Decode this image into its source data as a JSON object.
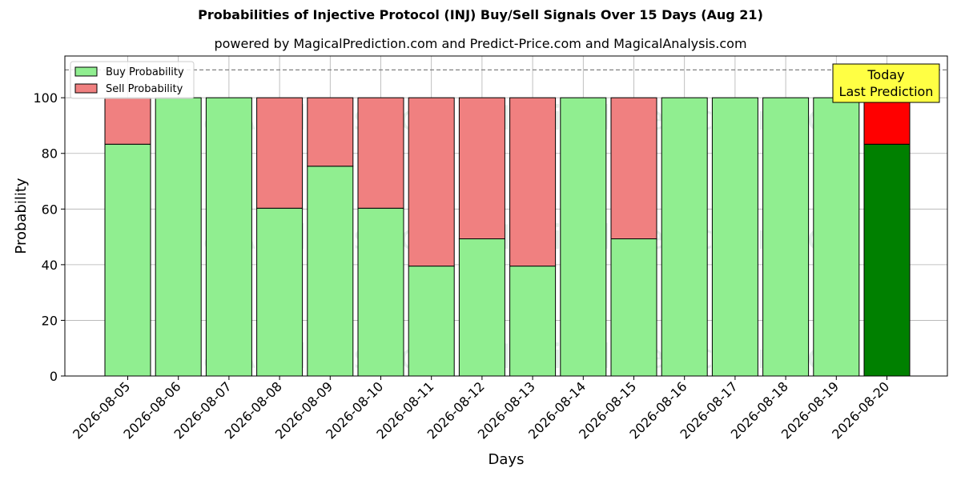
{
  "chart_data": {
    "type": "bar",
    "stacked": true,
    "title": "Probabilities of Injective Protocol (INJ) Buy/Sell Signals Over 15 Days (Aug 21)",
    "subtitle": "powered by MagicalPrediction.com and Predict-Price.com and MagicalAnalysis.com",
    "xlabel": "Days",
    "ylabel": "Probability",
    "ylim": [
      0,
      115
    ],
    "yticks": [
      0,
      20,
      40,
      60,
      80,
      100
    ],
    "grid": true,
    "legend_position": "top-left",
    "reference_line": 110,
    "categories": [
      "2026-08-05",
      "2026-08-06",
      "2026-08-07",
      "2026-08-08",
      "2026-08-09",
      "2026-08-10",
      "2026-08-11",
      "2026-08-12",
      "2026-08-13",
      "2026-08-14",
      "2026-08-15",
      "2026-08-16",
      "2026-08-17",
      "2026-08-18",
      "2026-08-19",
      "2026-08-20"
    ],
    "series": [
      {
        "name": "Buy Probability",
        "values": [
          83.3,
          100,
          100,
          60.3,
          75.4,
          60.3,
          39.5,
          49.3,
          39.5,
          100,
          49.3,
          100,
          100,
          100,
          100,
          83.3
        ]
      },
      {
        "name": "Sell Probability",
        "values": [
          16.7,
          0,
          0,
          39.7,
          24.6,
          39.7,
          60.5,
          50.7,
          60.5,
          0,
          50.7,
          0,
          0,
          0,
          0,
          16.7
        ]
      }
    ],
    "annotation": {
      "line1": "Today",
      "line2": "Last Prediction"
    },
    "watermarks": [
      "MagicalAnalysis.com",
      "MagicalPrediction.com"
    ],
    "colors": {
      "buy": "#90ee90",
      "sell": "#f08080",
      "buy_last": "#008000",
      "sell_last": "#ff0000",
      "annotation_bg": "#ffff44",
      "watermark": "#2e8b57"
    }
  }
}
